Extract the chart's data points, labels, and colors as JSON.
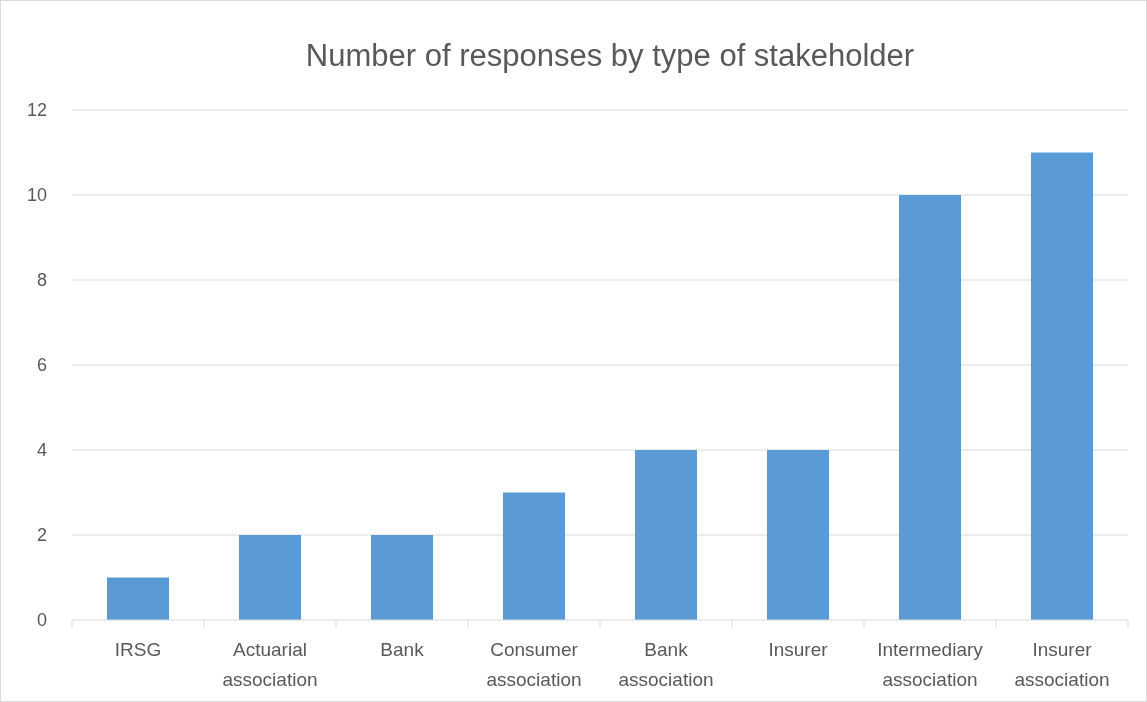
{
  "chart_data": {
    "type": "bar",
    "title": "Number of responses by type of stakeholder",
    "categories": [
      "IRSG",
      "Actuarial association",
      "Bank",
      "Consumer association",
      "Bank association",
      "Insurer",
      "Intermediary association",
      "Insurer association"
    ],
    "values": [
      1,
      2,
      2,
      3,
      4,
      4,
      10,
      11
    ],
    "color": "#5b9bd5",
    "ylim": [
      0,
      12
    ],
    "yticks": [
      0,
      2,
      4,
      6,
      8,
      10,
      12
    ],
    "grid": "y"
  }
}
